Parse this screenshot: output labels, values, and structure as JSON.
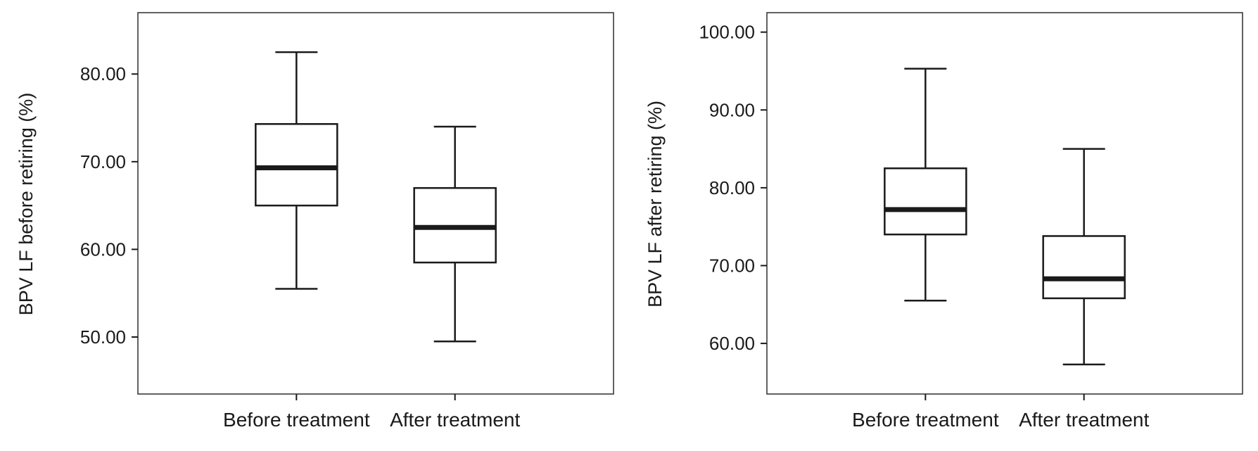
{
  "figure": {
    "background": "#ffffff",
    "stroke_color": "#1a1a1a",
    "box_fill": "#ffffff"
  },
  "chart_data": [
    {
      "type": "boxplot",
      "title": "",
      "ylabel": "BPV LF before retiring (%)",
      "xlabel": "",
      "categories": [
        "Before treatment",
        "After treatment"
      ],
      "yticks": [
        50,
        60,
        70,
        80
      ],
      "ytick_labels": [
        "50.00",
        "60.00",
        "70.00",
        "80.00"
      ],
      "ylim": [
        43.5,
        87.0
      ],
      "grid": false,
      "legend": "none",
      "series": [
        {
          "category": "Before treatment",
          "min": 55.5,
          "q1": 65.0,
          "median": 69.3,
          "q3": 74.3,
          "max": 82.5
        },
        {
          "category": "After treatment",
          "min": 49.5,
          "q1": 58.5,
          "median": 62.5,
          "q3": 67.0,
          "max": 74.0
        }
      ]
    },
    {
      "type": "boxplot",
      "title": "",
      "ylabel": "BPV LF after retiring (%)",
      "xlabel": "",
      "categories": [
        "Before treatment",
        "After treatment"
      ],
      "yticks": [
        60,
        70,
        80,
        90,
        100
      ],
      "ytick_labels": [
        "60.00",
        "70.00",
        "80.00",
        "90.00",
        "100.00"
      ],
      "ylim": [
        53.5,
        102.5
      ],
      "grid": false,
      "legend": "none",
      "series": [
        {
          "category": "Before treatment",
          "min": 65.5,
          "q1": 74.0,
          "median": 77.2,
          "q3": 82.5,
          "max": 95.3
        },
        {
          "category": "After treatment",
          "min": 57.3,
          "q1": 65.8,
          "median": 68.3,
          "q3": 73.8,
          "max": 85.0
        }
      ]
    }
  ]
}
